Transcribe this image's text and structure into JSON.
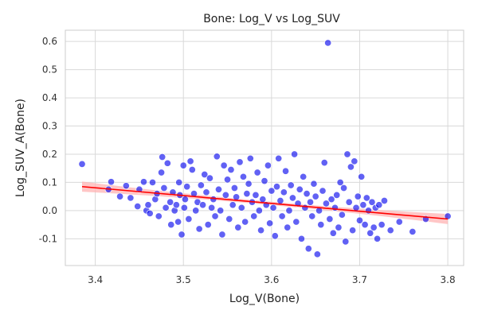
{
  "chart_data": {
    "type": "scatter",
    "title": "Bone: Log_V vs Log_SUV",
    "xlabel": "Log_V(Bone)",
    "ylabel": "Log_SUV_A(Bone)",
    "xlim": [
      3.366,
      3.818
    ],
    "ylim": [
      -0.195,
      0.64
    ],
    "xticks": [
      3.4,
      3.5,
      3.6,
      3.7,
      3.8
    ],
    "yticks": [
      -0.1,
      0.0,
      0.1,
      0.2,
      0.3,
      0.4,
      0.5,
      0.6
    ],
    "grid": true,
    "legend": "none",
    "colors": {
      "points": "#0000ee",
      "point_edge": "#ffffff",
      "fit_line": "#ff0000",
      "confidence_band": "#ffb3b3",
      "grid": "#d9d9d9",
      "axes": "#cccccc"
    },
    "regression": {
      "x": [
        3.385,
        3.8
      ],
      "y": [
        0.085,
        -0.03
      ],
      "band_half_width_at_ends": 0.018,
      "band_half_width_at_center": 0.006
    },
    "points": [
      [
        3.385,
        0.165
      ],
      [
        3.415,
        0.075
      ],
      [
        3.418,
        0.102
      ],
      [
        3.428,
        0.05
      ],
      [
        3.435,
        0.088
      ],
      [
        3.44,
        0.045
      ],
      [
        3.448,
        0.015
      ],
      [
        3.45,
        0.075
      ],
      [
        3.455,
        0.102
      ],
      [
        3.458,
        0.0
      ],
      [
        3.46,
        0.02
      ],
      [
        3.462,
        -0.01
      ],
      [
        3.465,
        0.1
      ],
      [
        3.468,
        0.04
      ],
      [
        3.47,
        0.06
      ],
      [
        3.472,
        -0.02
      ],
      [
        3.475,
        0.135
      ],
      [
        3.476,
        0.19
      ],
      [
        3.478,
        0.08
      ],
      [
        3.48,
        0.01
      ],
      [
        3.482,
        0.168
      ],
      [
        3.485,
        0.03
      ],
      [
        3.486,
        -0.05
      ],
      [
        3.488,
        0.065
      ],
      [
        3.49,
        0.0
      ],
      [
        3.492,
        0.02
      ],
      [
        3.494,
        -0.04
      ],
      [
        3.495,
        0.1
      ],
      [
        3.496,
        0.055
      ],
      [
        3.498,
        -0.085
      ],
      [
        3.5,
        0.16
      ],
      [
        3.501,
        0.01
      ],
      [
        3.502,
        0.04
      ],
      [
        3.504,
        0.085
      ],
      [
        3.506,
        -0.03
      ],
      [
        3.508,
        0.175
      ],
      [
        3.51,
        0.145
      ],
      [
        3.512,
        0.06
      ],
      [
        3.514,
        0.0
      ],
      [
        3.516,
        0.03
      ],
      [
        3.518,
        -0.065
      ],
      [
        3.52,
        0.09
      ],
      [
        3.522,
        0.02
      ],
      [
        3.524,
        0.128
      ],
      [
        3.526,
        0.065
      ],
      [
        3.528,
        -0.05
      ],
      [
        3.53,
        0.115
      ],
      [
        3.532,
        0.01
      ],
      [
        3.534,
        0.04
      ],
      [
        3.536,
        -0.02
      ],
      [
        3.538,
        0.192
      ],
      [
        3.54,
        0.075
      ],
      [
        3.542,
        0.0
      ],
      [
        3.544,
        -0.085
      ],
      [
        3.546,
        0.16
      ],
      [
        3.548,
        0.055
      ],
      [
        3.55,
        0.11
      ],
      [
        3.552,
        -0.03
      ],
      [
        3.554,
        0.145
      ],
      [
        3.556,
        0.02
      ],
      [
        3.558,
        0.08
      ],
      [
        3.56,
        0.048
      ],
      [
        3.562,
        -0.06
      ],
      [
        3.564,
        0.172
      ],
      [
        3.566,
        0.01
      ],
      [
        3.568,
        0.12
      ],
      [
        3.57,
        -0.04
      ],
      [
        3.572,
        0.06
      ],
      [
        3.574,
        0.095
      ],
      [
        3.576,
        0.185
      ],
      [
        3.578,
        0.03
      ],
      [
        3.58,
        -0.02
      ],
      [
        3.582,
        0.055
      ],
      [
        3.584,
        0.135
      ],
      [
        3.586,
        0.0
      ],
      [
        3.588,
        -0.07
      ],
      [
        3.59,
        0.04
      ],
      [
        3.592,
        0.105
      ],
      [
        3.594,
        0.02
      ],
      [
        3.596,
        0.16
      ],
      [
        3.598,
        -0.045
      ],
      [
        3.6,
        0.07
      ],
      [
        3.602,
        0.01
      ],
      [
        3.604,
        -0.09
      ],
      [
        3.606,
        0.085
      ],
      [
        3.608,
        0.185
      ],
      [
        3.61,
        0.035
      ],
      [
        3.612,
        -0.02
      ],
      [
        3.614,
        0.065
      ],
      [
        3.616,
        0.14
      ],
      [
        3.618,
        -0.06
      ],
      [
        3.62,
        0.0
      ],
      [
        3.622,
        0.09
      ],
      [
        3.624,
        0.045
      ],
      [
        3.626,
        0.2
      ],
      [
        3.628,
        -0.04
      ],
      [
        3.63,
        0.025
      ],
      [
        3.632,
        0.075
      ],
      [
        3.634,
        -0.1
      ],
      [
        3.636,
        0.12
      ],
      [
        3.638,
        0.01
      ],
      [
        3.64,
        0.06
      ],
      [
        3.642,
        -0.135
      ],
      [
        3.644,
        0.03
      ],
      [
        3.646,
        -0.02
      ],
      [
        3.648,
        0.095
      ],
      [
        3.65,
        0.05
      ],
      [
        3.652,
        -0.155
      ],
      [
        3.654,
        0.0
      ],
      [
        3.656,
        -0.05
      ],
      [
        3.658,
        0.07
      ],
      [
        3.66,
        0.17
      ],
      [
        3.662,
        0.025
      ],
      [
        3.664,
        0.595
      ],
      [
        3.666,
        -0.03
      ],
      [
        3.668,
        0.04
      ],
      [
        3.67,
        -0.08
      ],
      [
        3.672,
        0.01
      ],
      [
        3.674,
        0.055
      ],
      [
        3.676,
        -0.06
      ],
      [
        3.678,
        0.1
      ],
      [
        3.68,
        -0.015
      ],
      [
        3.682,
        0.08
      ],
      [
        3.684,
        -0.11
      ],
      [
        3.686,
        0.2
      ],
      [
        3.688,
        0.03
      ],
      [
        3.69,
        0.155
      ],
      [
        3.692,
        -0.07
      ],
      [
        3.694,
        0.175
      ],
      [
        3.696,
        0.01
      ],
      [
        3.698,
        0.05
      ],
      [
        3.7,
        -0.035
      ],
      [
        3.702,
        0.12
      ],
      [
        3.704,
        0.02
      ],
      [
        3.706,
        -0.05
      ],
      [
        3.708,
        0.045
      ],
      [
        3.71,
        0.0
      ],
      [
        3.712,
        -0.08
      ],
      [
        3.714,
        0.03
      ],
      [
        3.716,
        -0.06
      ],
      [
        3.718,
        0.01
      ],
      [
        3.72,
        -0.1
      ],
      [
        3.722,
        0.02
      ],
      [
        3.725,
        -0.05
      ],
      [
        3.728,
        0.035
      ],
      [
        3.735,
        -0.07
      ],
      [
        3.745,
        -0.04
      ],
      [
        3.76,
        -0.075
      ],
      [
        3.775,
        -0.03
      ],
      [
        3.8,
        -0.02
      ]
    ]
  }
}
